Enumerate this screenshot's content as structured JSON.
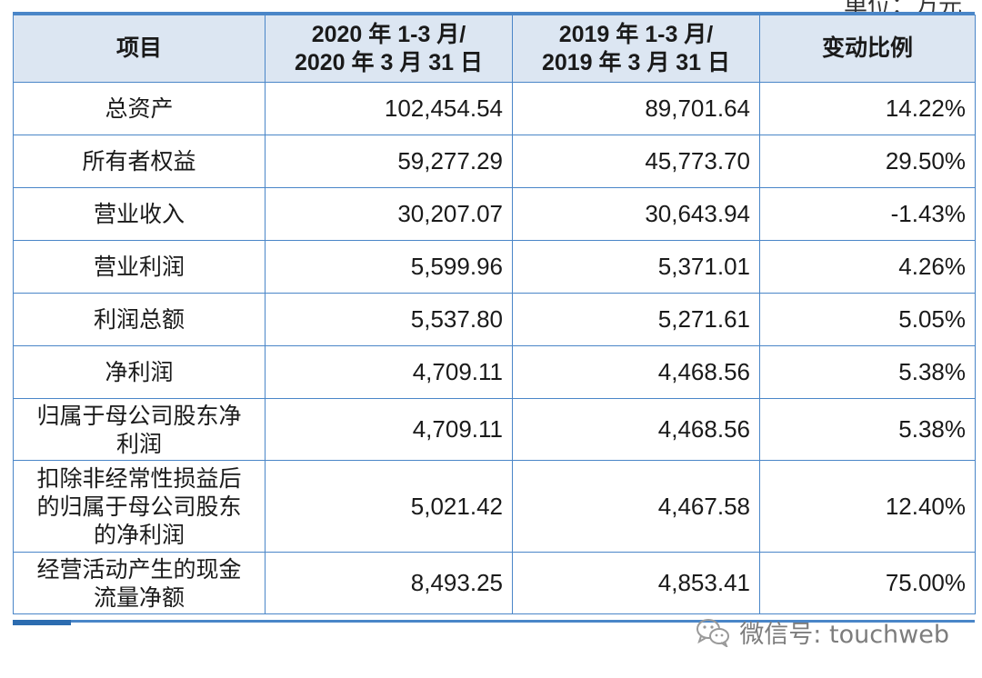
{
  "unit_note": "单位：万元",
  "table": {
    "headers": [
      "项目",
      "2020 年 1-3 月/\n2020 年 3 月 31 日",
      "2019 年 1-3 月/\n2019 年 3 月 31 日",
      "变动比例"
    ],
    "rows": [
      {
        "item": "总资产",
        "v2020": "102,454.54",
        "v2019": "89,701.64",
        "change": "14.22%"
      },
      {
        "item": "所有者权益",
        "v2020": "59,277.29",
        "v2019": "45,773.70",
        "change": "29.50%"
      },
      {
        "item": "营业收入",
        "v2020": "30,207.07",
        "v2019": "30,643.94",
        "change": "-1.43%"
      },
      {
        "item": "营业利润",
        "v2020": "5,599.96",
        "v2019": "5,371.01",
        "change": "4.26%"
      },
      {
        "item": "利润总额",
        "v2020": "5,537.80",
        "v2019": "5,271.61",
        "change": "5.05%"
      },
      {
        "item": "净利润",
        "v2020": "4,709.11",
        "v2019": "4,468.56",
        "change": "5.38%"
      },
      {
        "item": "归属于母公司股东净\n利润",
        "v2020": "4,709.11",
        "v2019": "4,468.56",
        "change": "5.38%"
      },
      {
        "item": "扣除非经常性损益后\n的归属于母公司股东\n的净利润",
        "v2020": "5,021.42",
        "v2019": "4,467.58",
        "change": "12.40%"
      },
      {
        "item": "经营活动产生的现金\n流量净额",
        "v2020": "8,493.25",
        "v2019": "4,853.41",
        "change": "75.00%"
      }
    ]
  },
  "watermark": {
    "text": "微信号: touchweb",
    "icon": "wechat-icon"
  }
}
